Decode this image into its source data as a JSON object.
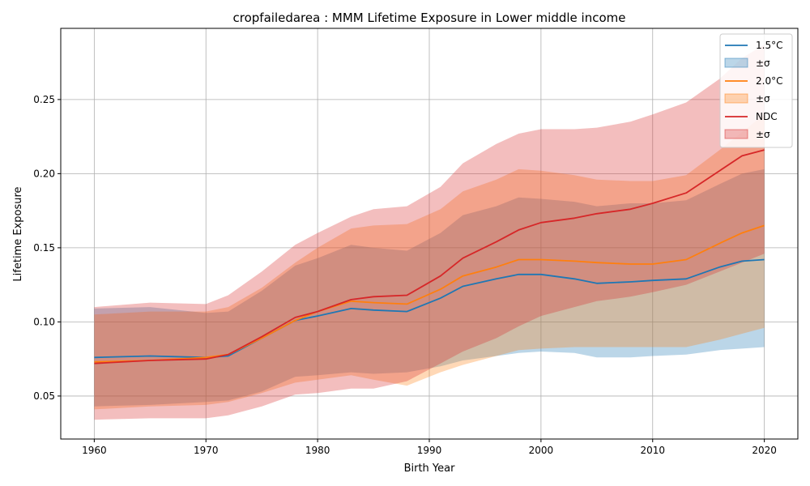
{
  "chart_data": {
    "type": "line",
    "title": "cropfailedarea : MMM Lifetime Exposure in Lower middle income",
    "xlabel": "Birth Year",
    "ylabel": "Lifetime Exposure",
    "xlim": [
      1957,
      2023
    ],
    "ylim": [
      0.021,
      0.298
    ],
    "xticks": [
      1960,
      1970,
      1980,
      1990,
      2000,
      2010,
      2020
    ],
    "yticks": [
      0.05,
      0.1,
      0.15,
      0.2,
      0.25
    ],
    "ytick_labels": [
      "0.05",
      "0.10",
      "0.15",
      "0.20",
      "0.25"
    ],
    "grid": true,
    "legend_position": "top-right",
    "x_knots": [
      1960,
      1965,
      1970,
      1972,
      1975,
      1978,
      1980,
      1983,
      1985,
      1988,
      1991,
      1993,
      1996,
      1998,
      2000,
      2003,
      2005,
      2008,
      2010,
      2013,
      2016,
      2018,
      2020
    ],
    "series": [
      {
        "name": "1.5°C",
        "band_label": "±σ",
        "color": "#1f77b4",
        "band_color": "#1f77b4",
        "mean": [
          0.076,
          0.077,
          0.076,
          0.077,
          0.089,
          0.101,
          0.104,
          0.109,
          0.108,
          0.107,
          0.116,
          0.124,
          0.129,
          0.132,
          0.132,
          0.129,
          0.126,
          0.127,
          0.128,
          0.129,
          0.137,
          0.141,
          0.142
        ],
        "upper": [
          0.109,
          0.11,
          0.106,
          0.107,
          0.121,
          0.138,
          0.143,
          0.152,
          0.15,
          0.148,
          0.16,
          0.172,
          0.178,
          0.184,
          0.183,
          0.181,
          0.178,
          0.18,
          0.18,
          0.182,
          0.193,
          0.2,
          0.203
        ],
        "lower": [
          0.043,
          0.044,
          0.046,
          0.047,
          0.053,
          0.063,
          0.064,
          0.066,
          0.065,
          0.066,
          0.07,
          0.074,
          0.077,
          0.079,
          0.08,
          0.079,
          0.076,
          0.076,
          0.077,
          0.078,
          0.081,
          0.082,
          0.083
        ]
      },
      {
        "name": "2.0°C",
        "band_label": "±σ",
        "color": "#ff7f0e",
        "band_color": "#ff7f0e",
        "mean": [
          0.073,
          0.074,
          0.076,
          0.078,
          0.089,
          0.101,
          0.107,
          0.114,
          0.113,
          0.112,
          0.122,
          0.131,
          0.137,
          0.142,
          0.142,
          0.141,
          0.14,
          0.139,
          0.139,
          0.142,
          0.153,
          0.16,
          0.165
        ],
        "upper": [
          0.105,
          0.107,
          0.107,
          0.11,
          0.123,
          0.14,
          0.15,
          0.163,
          0.165,
          0.166,
          0.176,
          0.188,
          0.196,
          0.203,
          0.202,
          0.199,
          0.196,
          0.195,
          0.195,
          0.199,
          0.216,
          0.228,
          0.24
        ],
        "lower": [
          0.041,
          0.043,
          0.044,
          0.046,
          0.052,
          0.059,
          0.061,
          0.064,
          0.061,
          0.057,
          0.066,
          0.071,
          0.077,
          0.081,
          0.082,
          0.083,
          0.083,
          0.083,
          0.083,
          0.083,
          0.088,
          0.092,
          0.096
        ]
      },
      {
        "name": "NDC",
        "band_label": "±σ",
        "color": "#d62728",
        "band_color": "#d62728",
        "mean": [
          0.072,
          0.074,
          0.075,
          0.078,
          0.09,
          0.103,
          0.107,
          0.115,
          0.117,
          0.118,
          0.131,
          0.143,
          0.154,
          0.162,
          0.167,
          0.17,
          0.173,
          0.176,
          0.18,
          0.187,
          0.202,
          0.212,
          0.216
        ],
        "upper": [
          0.11,
          0.113,
          0.112,
          0.118,
          0.134,
          0.152,
          0.16,
          0.171,
          0.176,
          0.178,
          0.191,
          0.207,
          0.22,
          0.227,
          0.23,
          0.23,
          0.231,
          0.235,
          0.24,
          0.248,
          0.264,
          0.278,
          0.287
        ],
        "lower": [
          0.034,
          0.035,
          0.035,
          0.037,
          0.043,
          0.051,
          0.052,
          0.055,
          0.055,
          0.06,
          0.072,
          0.08,
          0.089,
          0.097,
          0.104,
          0.11,
          0.114,
          0.117,
          0.12,
          0.125,
          0.134,
          0.14,
          0.146
        ]
      }
    ]
  }
}
